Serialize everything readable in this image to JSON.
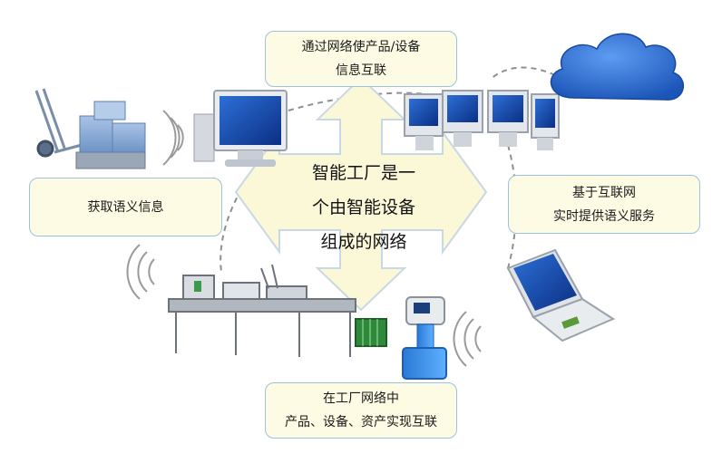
{
  "center": {
    "line1": "智能工厂是一",
    "line2": "个由智能设备",
    "line3": "组成的网络"
  },
  "boxes": {
    "top": {
      "line1": "通过网络使产品/设备",
      "line2": "信息互联"
    },
    "left": {
      "line1": "获取语义信息"
    },
    "right": {
      "line1": "基于互联网",
      "line2": "实时提供语义服务"
    },
    "bottom": {
      "line1": "在工厂网络中",
      "line2": "产品、设备、资产实现互联"
    }
  },
  "colors": {
    "box_fill": "#fdfbe3",
    "box_border": "#9cc3dc",
    "arrow_fill": "#fbf8d8",
    "arrow_border": "#c9d8e6",
    "cloud": "#2f6fd0",
    "dashed_ring": "#8f8f8f"
  },
  "icons": [
    "hand-truck-icon",
    "boxes-icon",
    "desktop-monitor-icon",
    "server-monitors-icon",
    "cloud-icon",
    "laptop-icon",
    "production-line-icon",
    "flowmeter-icon",
    "wireless-signal-icon"
  ]
}
